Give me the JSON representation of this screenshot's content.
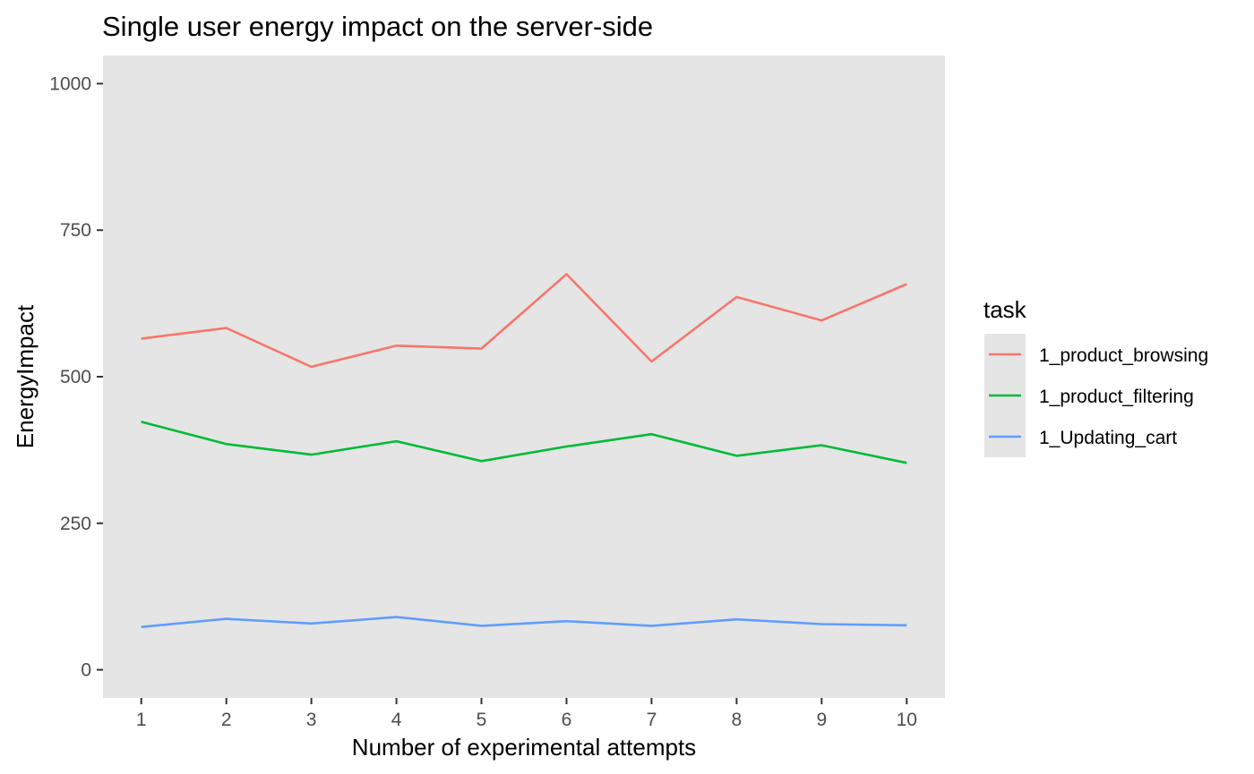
{
  "chart_data": {
    "type": "line",
    "title": "Single user energy impact on the server-side",
    "xlabel": "Number of experimental attempts",
    "ylabel": "EnergyImpact",
    "x": [
      1,
      2,
      3,
      4,
      5,
      6,
      7,
      8,
      9,
      10
    ],
    "xlim": [
      0.55,
      10.45
    ],
    "ylim": [
      -48,
      1048
    ],
    "yticks": [
      0,
      250,
      500,
      750,
      1000
    ],
    "grid": false,
    "panel_background": "#e5e5e5",
    "legend": {
      "title": "task",
      "position": "right"
    },
    "series": [
      {
        "name": "1_product_browsing",
        "color": "#f8766d",
        "values": [
          565,
          583,
          517,
          553,
          548,
          675,
          526,
          636,
          596,
          658
        ]
      },
      {
        "name": "1_product_filtering",
        "color": "#00ba38",
        "values": [
          423,
          385,
          367,
          390,
          356,
          381,
          402,
          365,
          383,
          353
        ]
      },
      {
        "name": "1_Updating_cart",
        "color": "#619cff",
        "values": [
          73,
          87,
          79,
          90,
          75,
          83,
          75,
          86,
          78,
          76
        ]
      }
    ]
  }
}
